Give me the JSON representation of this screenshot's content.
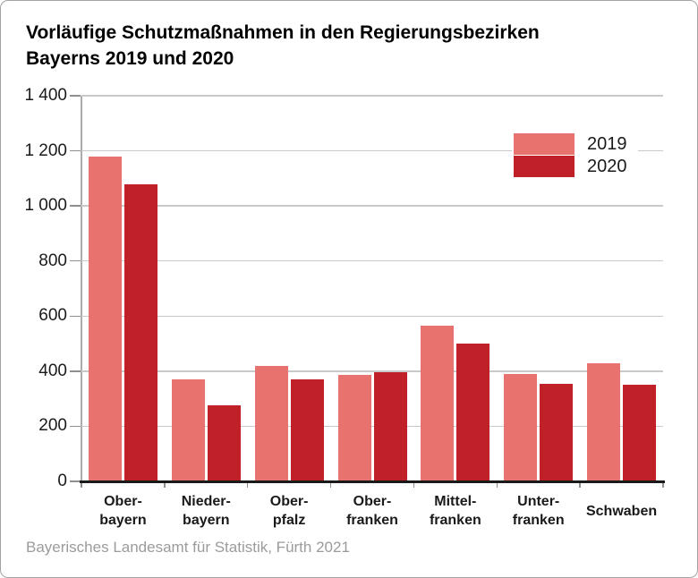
{
  "header": {
    "title": "Vorläufige Schutzmaßnahmen in den Regierungsbezirken\nBayerns 2019 und 2020"
  },
  "footer": {
    "source": "Bayerisches Landesamt für Statistik, Fürth 2021"
  },
  "chart_data": {
    "type": "bar",
    "title": "Vorläufige Schutzmaßnahmen in den Regierungsbezirken Bayerns 2019 und 2020",
    "categories": [
      "Ober-\nbayern",
      "Nieder-\nbayern",
      "Ober-\npfalz",
      "Ober-\nfranken",
      "Mittel-\nfranken",
      "Unter-\nfranken",
      "Schwaben"
    ],
    "series": [
      {
        "name": "2019",
        "color": "#E8736E",
        "values": [
          1180,
          370,
          420,
          385,
          565,
          390,
          430
        ]
      },
      {
        "name": "2020",
        "color": "#C02128",
        "values": [
          1080,
          275,
          370,
          395,
          500,
          355,
          350
        ]
      }
    ],
    "xlabel": "",
    "ylabel": "",
    "ylim": [
      0,
      1400
    ],
    "yticks": [
      0,
      200,
      400,
      600,
      800,
      1000,
      1200,
      1400
    ],
    "ytick_labels": [
      "0",
      "200",
      "400",
      "600",
      "800",
      "1 000",
      "1 200",
      "1 400"
    ],
    "grid": "horizontal",
    "legend_position": "top-right"
  },
  "colors": {
    "grid": "#C9C9C9",
    "axis": "#ACACAC",
    "tick": "#8F8F8F",
    "baseline": "#1A1A1A",
    "frame_border": "#A3A3A3",
    "title_text": "#000000",
    "footer_text": "#9B9B9B",
    "series_2019": "#E8736E",
    "series_2020": "#C02128"
  }
}
